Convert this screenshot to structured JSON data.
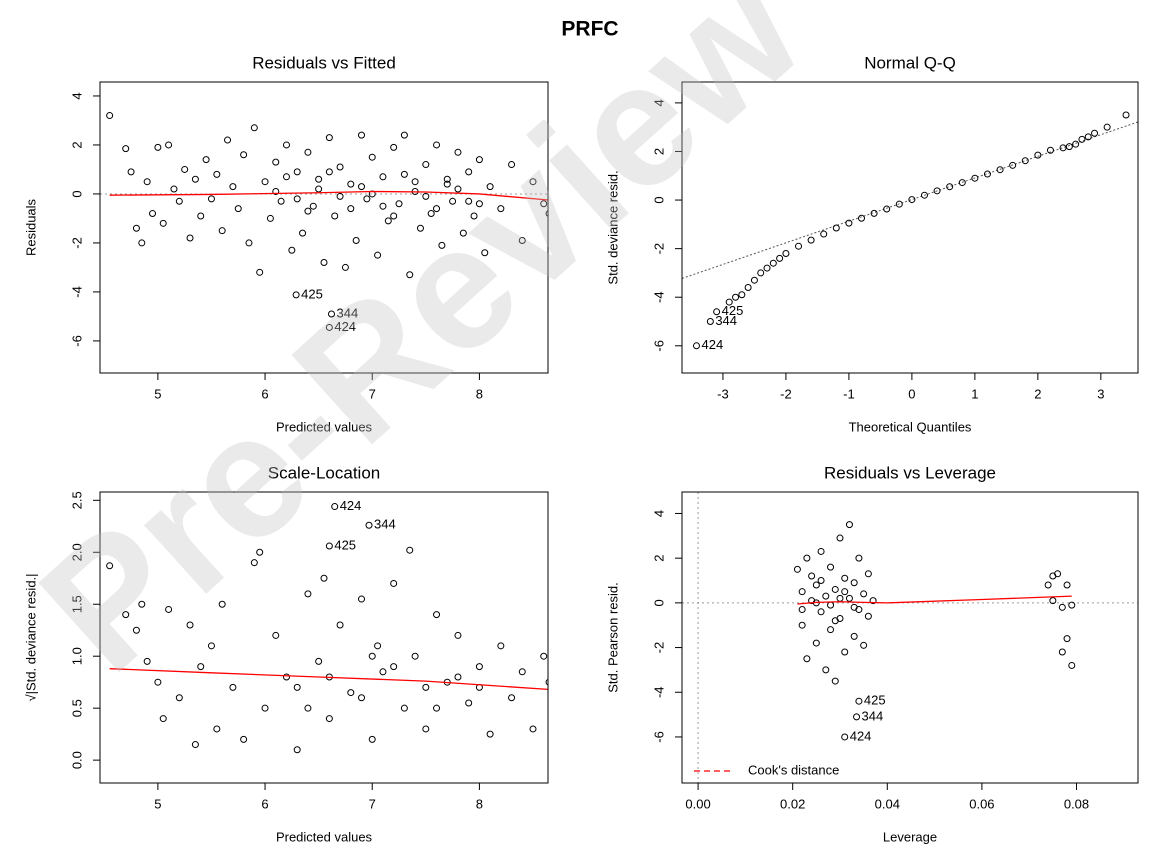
{
  "title": "PRFC",
  "watermark": "Pre-Review",
  "chart_data": [
    {
      "type": "scatter",
      "title": "Residuals vs Fitted",
      "xlabel": "Predicted values",
      "ylabel": "Residuals",
      "xlim": [
        4.46,
        8.64
      ],
      "ylim": [
        -7.31,
        4.57
      ],
      "xticks": [
        5,
        6,
        7,
        8
      ],
      "yticks": [
        -6,
        -4,
        -2,
        0,
        2,
        4
      ],
      "point_color": "#000000",
      "hline": 0,
      "points": {
        "x": [
          4.55,
          4.7,
          4.75,
          4.8,
          4.85,
          4.9,
          4.95,
          5.0,
          5.05,
          5.1,
          5.15,
          5.2,
          5.25,
          5.3,
          5.35,
          5.4,
          5.45,
          5.5,
          5.55,
          5.6,
          5.65,
          5.7,
          5.75,
          5.8,
          5.85,
          5.9,
          5.95,
          6.0,
          6.05,
          6.1,
          6.15,
          6.2,
          6.25,
          6.3,
          6.35,
          6.4,
          6.45,
          6.5,
          6.55,
          6.6,
          6.65,
          6.7,
          6.75,
          6.8,
          6.85,
          6.9,
          6.95,
          7.0,
          7.05,
          7.1,
          7.15,
          7.2,
          7.25,
          7.3,
          7.35,
          7.4,
          7.45,
          7.5,
          7.55,
          7.6,
          7.65,
          7.7,
          7.75,
          7.8,
          7.85,
          7.9,
          7.95,
          8.0,
          8.05,
          8.1,
          8.2,
          8.3,
          8.4,
          8.5,
          8.6,
          8.65,
          6.1,
          6.3,
          6.5,
          6.7,
          6.9,
          7.1,
          7.3,
          7.5,
          7.7,
          7.9,
          6.2,
          6.4,
          6.6,
          6.8,
          7.0,
          7.2,
          7.4,
          7.6,
          7.8,
          8.0
        ],
        "y": [
          3.2,
          1.85,
          0.9,
          -1.4,
          -2.0,
          0.5,
          -0.8,
          1.9,
          -1.2,
          2.0,
          0.2,
          -0.3,
          1.0,
          -1.8,
          0.6,
          -0.9,
          1.4,
          -0.2,
          0.8,
          -1.5,
          2.2,
          0.3,
          -0.6,
          1.6,
          -2.0,
          2.7,
          -3.2,
          0.5,
          -1.0,
          1.3,
          -0.3,
          2.0,
          -2.3,
          0.9,
          -1.6,
          1.7,
          -0.5,
          0.2,
          -2.8,
          2.3,
          -0.9,
          1.1,
          -3.0,
          0.4,
          -1.9,
          2.4,
          -0.2,
          1.5,
          -2.5,
          0.7,
          -1.1,
          1.9,
          -0.4,
          2.4,
          -3.3,
          0.1,
          -1.4,
          1.2,
          -0.8,
          2.0,
          -2.1,
          0.6,
          -0.3,
          1.7,
          -1.6,
          0.9,
          -0.9,
          1.4,
          -2.4,
          0.3,
          -0.6,
          1.2,
          -1.9,
          0.5,
          -0.4,
          -0.8,
          0.1,
          -0.2,
          0.6,
          -0.1,
          0.3,
          -0.5,
          0.8,
          -0.1,
          0.4,
          -0.3,
          0.7,
          -0.7,
          0.9,
          -0.6,
          0.0,
          -0.9,
          0.5,
          -0.6,
          0.2,
          -0.4
        ]
      },
      "smooth": {
        "color": "#ff0000",
        "x": [
          4.55,
          5.5,
          6.5,
          7.0,
          7.5,
          8.0,
          8.65
        ],
        "y": [
          -0.05,
          -0.02,
          0.05,
          0.1,
          0.08,
          0.0,
          -0.25
        ]
      },
      "annotations": [
        {
          "label": "425",
          "x": 6.29,
          "y": -4.12
        },
        {
          "label": "344",
          "x": 6.62,
          "y": -4.9
        },
        {
          "label": "424",
          "x": 6.6,
          "y": -5.45
        }
      ]
    },
    {
      "type": "scatter",
      "title": "Normal Q-Q",
      "xlabel": "Theoretical Quantiles",
      "ylabel": "Std. deviance resid.",
      "xlim": [
        -3.65,
        3.59
      ],
      "ylim": [
        -7.12,
        4.86
      ],
      "xticks": [
        -3,
        -2,
        -1,
        0,
        1,
        2,
        3
      ],
      "yticks": [
        -6,
        -4,
        -2,
        0,
        2,
        4
      ],
      "point_color": "#000000",
      "reference_line": {
        "intercept": 0.02,
        "slope": 0.89
      },
      "points": {
        "x": [
          -2.9,
          -2.8,
          -2.7,
          -2.6,
          -2.5,
          -2.4,
          -2.3,
          -2.2,
          -2.1,
          -2.0,
          -1.8,
          -1.6,
          -1.4,
          -1.2,
          -1.0,
          -0.8,
          -0.6,
          -0.4,
          -0.2,
          0.0,
          0.2,
          0.4,
          0.6,
          0.8,
          1.0,
          1.2,
          1.4,
          1.6,
          1.8,
          2.0,
          2.2,
          2.4,
          2.5,
          2.6,
          2.7,
          2.8,
          2.9,
          3.1,
          3.4
        ],
        "y": [
          -4.2,
          -4.0,
          -3.9,
          -3.6,
          -3.3,
          -3.0,
          -2.8,
          -2.6,
          -2.4,
          -2.2,
          -1.9,
          -1.65,
          -1.4,
          -1.15,
          -0.95,
          -0.75,
          -0.55,
          -0.37,
          -0.17,
          0.02,
          0.2,
          0.38,
          0.55,
          0.72,
          0.9,
          1.07,
          1.25,
          1.43,
          1.62,
          1.85,
          2.05,
          2.15,
          2.2,
          2.3,
          2.5,
          2.6,
          2.75,
          3.0,
          3.5
        ]
      },
      "annotations": [
        {
          "label": "425",
          "x": -3.1,
          "y": -4.6
        },
        {
          "label": "344",
          "x": -3.2,
          "y": -5.0
        },
        {
          "label": "424",
          "x": -3.42,
          "y": -6.0
        }
      ]
    },
    {
      "type": "scatter",
      "title": "Scale-Location",
      "xlabel": "Predicted values",
      "ylabel": "√|Std. deviance resid.|",
      "xlim": [
        4.46,
        8.64
      ],
      "ylim": [
        -0.22,
        2.58
      ],
      "xticks": [
        5,
        6,
        7,
        8
      ],
      "yticks": [
        {
          "value": 0,
          "label": "0.0"
        },
        0.5,
        {
          "value": 1,
          "label": "1.0"
        },
        1.5,
        {
          "value": 2,
          "label": "2.0"
        },
        2.5
      ],
      "point_color": "#000000",
      "points": {
        "x": [
          4.55,
          4.7,
          4.8,
          4.85,
          4.9,
          5.0,
          5.05,
          5.1,
          5.2,
          5.3,
          5.35,
          5.4,
          5.5,
          5.55,
          5.6,
          5.7,
          5.8,
          5.9,
          5.95,
          6.0,
          6.1,
          6.2,
          6.3,
          6.4,
          6.5,
          6.55,
          6.6,
          6.7,
          6.8,
          6.9,
          7.0,
          7.05,
          7.1,
          7.2,
          7.3,
          7.35,
          7.4,
          7.5,
          7.6,
          7.7,
          7.8,
          7.9,
          8.0,
          8.1,
          8.2,
          8.3,
          8.4,
          8.5,
          8.6,
          8.65,
          6.3,
          6.6,
          6.9,
          7.2,
          7.5,
          7.8,
          6.4,
          7.0,
          7.6,
          8.0
        ],
        "y": [
          1.87,
          1.4,
          1.25,
          1.5,
          0.95,
          0.75,
          0.4,
          1.45,
          0.6,
          1.3,
          0.15,
          0.9,
          1.1,
          0.3,
          1.5,
          0.7,
          0.2,
          1.9,
          2.0,
          0.5,
          1.2,
          0.8,
          0.1,
          1.6,
          0.95,
          1.75,
          0.4,
          1.3,
          0.65,
          1.55,
          0.2,
          1.1,
          0.85,
          1.7,
          0.5,
          2.02,
          1.0,
          0.3,
          1.4,
          0.75,
          1.2,
          0.55,
          0.9,
          0.25,
          1.1,
          0.6,
          0.85,
          0.3,
          1.0,
          0.75,
          0.7,
          0.8,
          0.6,
          0.9,
          0.7,
          0.8,
          0.5,
          1.0,
          0.5,
          0.7
        ]
      },
      "smooth": {
        "color": "#ff0000",
        "x": [
          4.55,
          5.5,
          6.5,
          7.5,
          8.65
        ],
        "y": [
          0.88,
          0.84,
          0.8,
          0.76,
          0.68
        ]
      },
      "annotations": [
        {
          "label": "424",
          "x": 6.65,
          "y": 2.44
        },
        {
          "label": "344",
          "x": 6.97,
          "y": 2.26
        },
        {
          "label": "425",
          "x": 6.6,
          "y": 2.06
        }
      ]
    },
    {
      "type": "scatter",
      "title": "Residuals vs Leverage",
      "xlabel": "Leverage",
      "ylabel": "Std. Pearson resid.",
      "xlim": [
        -0.0034,
        0.093
      ],
      "ylim": [
        -8.06,
        4.96
      ],
      "xticks": [
        {
          "value": 0,
          "label": "0.00"
        },
        0.02,
        0.04,
        0.06,
        0.08
      ],
      "yticks": [
        -6,
        -4,
        -2,
        0,
        2,
        4
      ],
      "point_color": "#000000",
      "hline": 0,
      "vline": 0,
      "points": {
        "x": [
          0.021,
          0.022,
          0.022,
          0.023,
          0.023,
          0.024,
          0.024,
          0.025,
          0.025,
          0.026,
          0.026,
          0.027,
          0.027,
          0.028,
          0.028,
          0.029,
          0.029,
          0.03,
          0.03,
          0.031,
          0.031,
          0.032,
          0.032,
          0.033,
          0.033,
          0.034,
          0.034,
          0.035,
          0.035,
          0.036,
          0.036,
          0.037,
          0.022,
          0.025,
          0.028,
          0.03,
          0.033,
          0.026,
          0.029,
          0.031,
          0.074,
          0.075,
          0.075,
          0.076,
          0.077,
          0.077,
          0.078,
          0.078,
          0.079,
          0.079
        ],
        "y": [
          1.5,
          -1.0,
          0.5,
          2.0,
          -2.5,
          0.1,
          1.2,
          -1.8,
          0.8,
          -0.4,
          2.3,
          -3.0,
          0.3,
          1.6,
          -1.2,
          0.6,
          -3.5,
          2.9,
          -0.7,
          1.1,
          -2.2,
          0.2,
          3.5,
          -1.5,
          0.9,
          -0.3,
          2.0,
          -1.9,
          0.4,
          1.3,
          -0.6,
          0.1,
          -0.3,
          0.0,
          -0.1,
          0.2,
          -0.2,
          1.0,
          -0.8,
          0.5,
          0.8,
          0.1,
          1.2,
          1.3,
          -0.2,
          -2.2,
          0.8,
          -1.6,
          -2.8,
          -0.1
        ]
      },
      "smooth": {
        "color": "#ff0000",
        "x": [
          0.021,
          0.025,
          0.03,
          0.035,
          0.04,
          0.06,
          0.079
        ],
        "y": [
          -0.05,
          0.02,
          0.05,
          0.02,
          0.0,
          0.15,
          0.3
        ]
      },
      "legend": {
        "label": "Cook's distance",
        "color": "#ff0000",
        "position": "bottomleft"
      },
      "annotations": [
        {
          "label": "425",
          "x": 0.034,
          "y": -4.4
        },
        {
          "label": "344",
          "x": 0.0335,
          "y": -5.1
        },
        {
          "label": "424",
          "x": 0.031,
          "y": -6.0
        }
      ]
    }
  ]
}
